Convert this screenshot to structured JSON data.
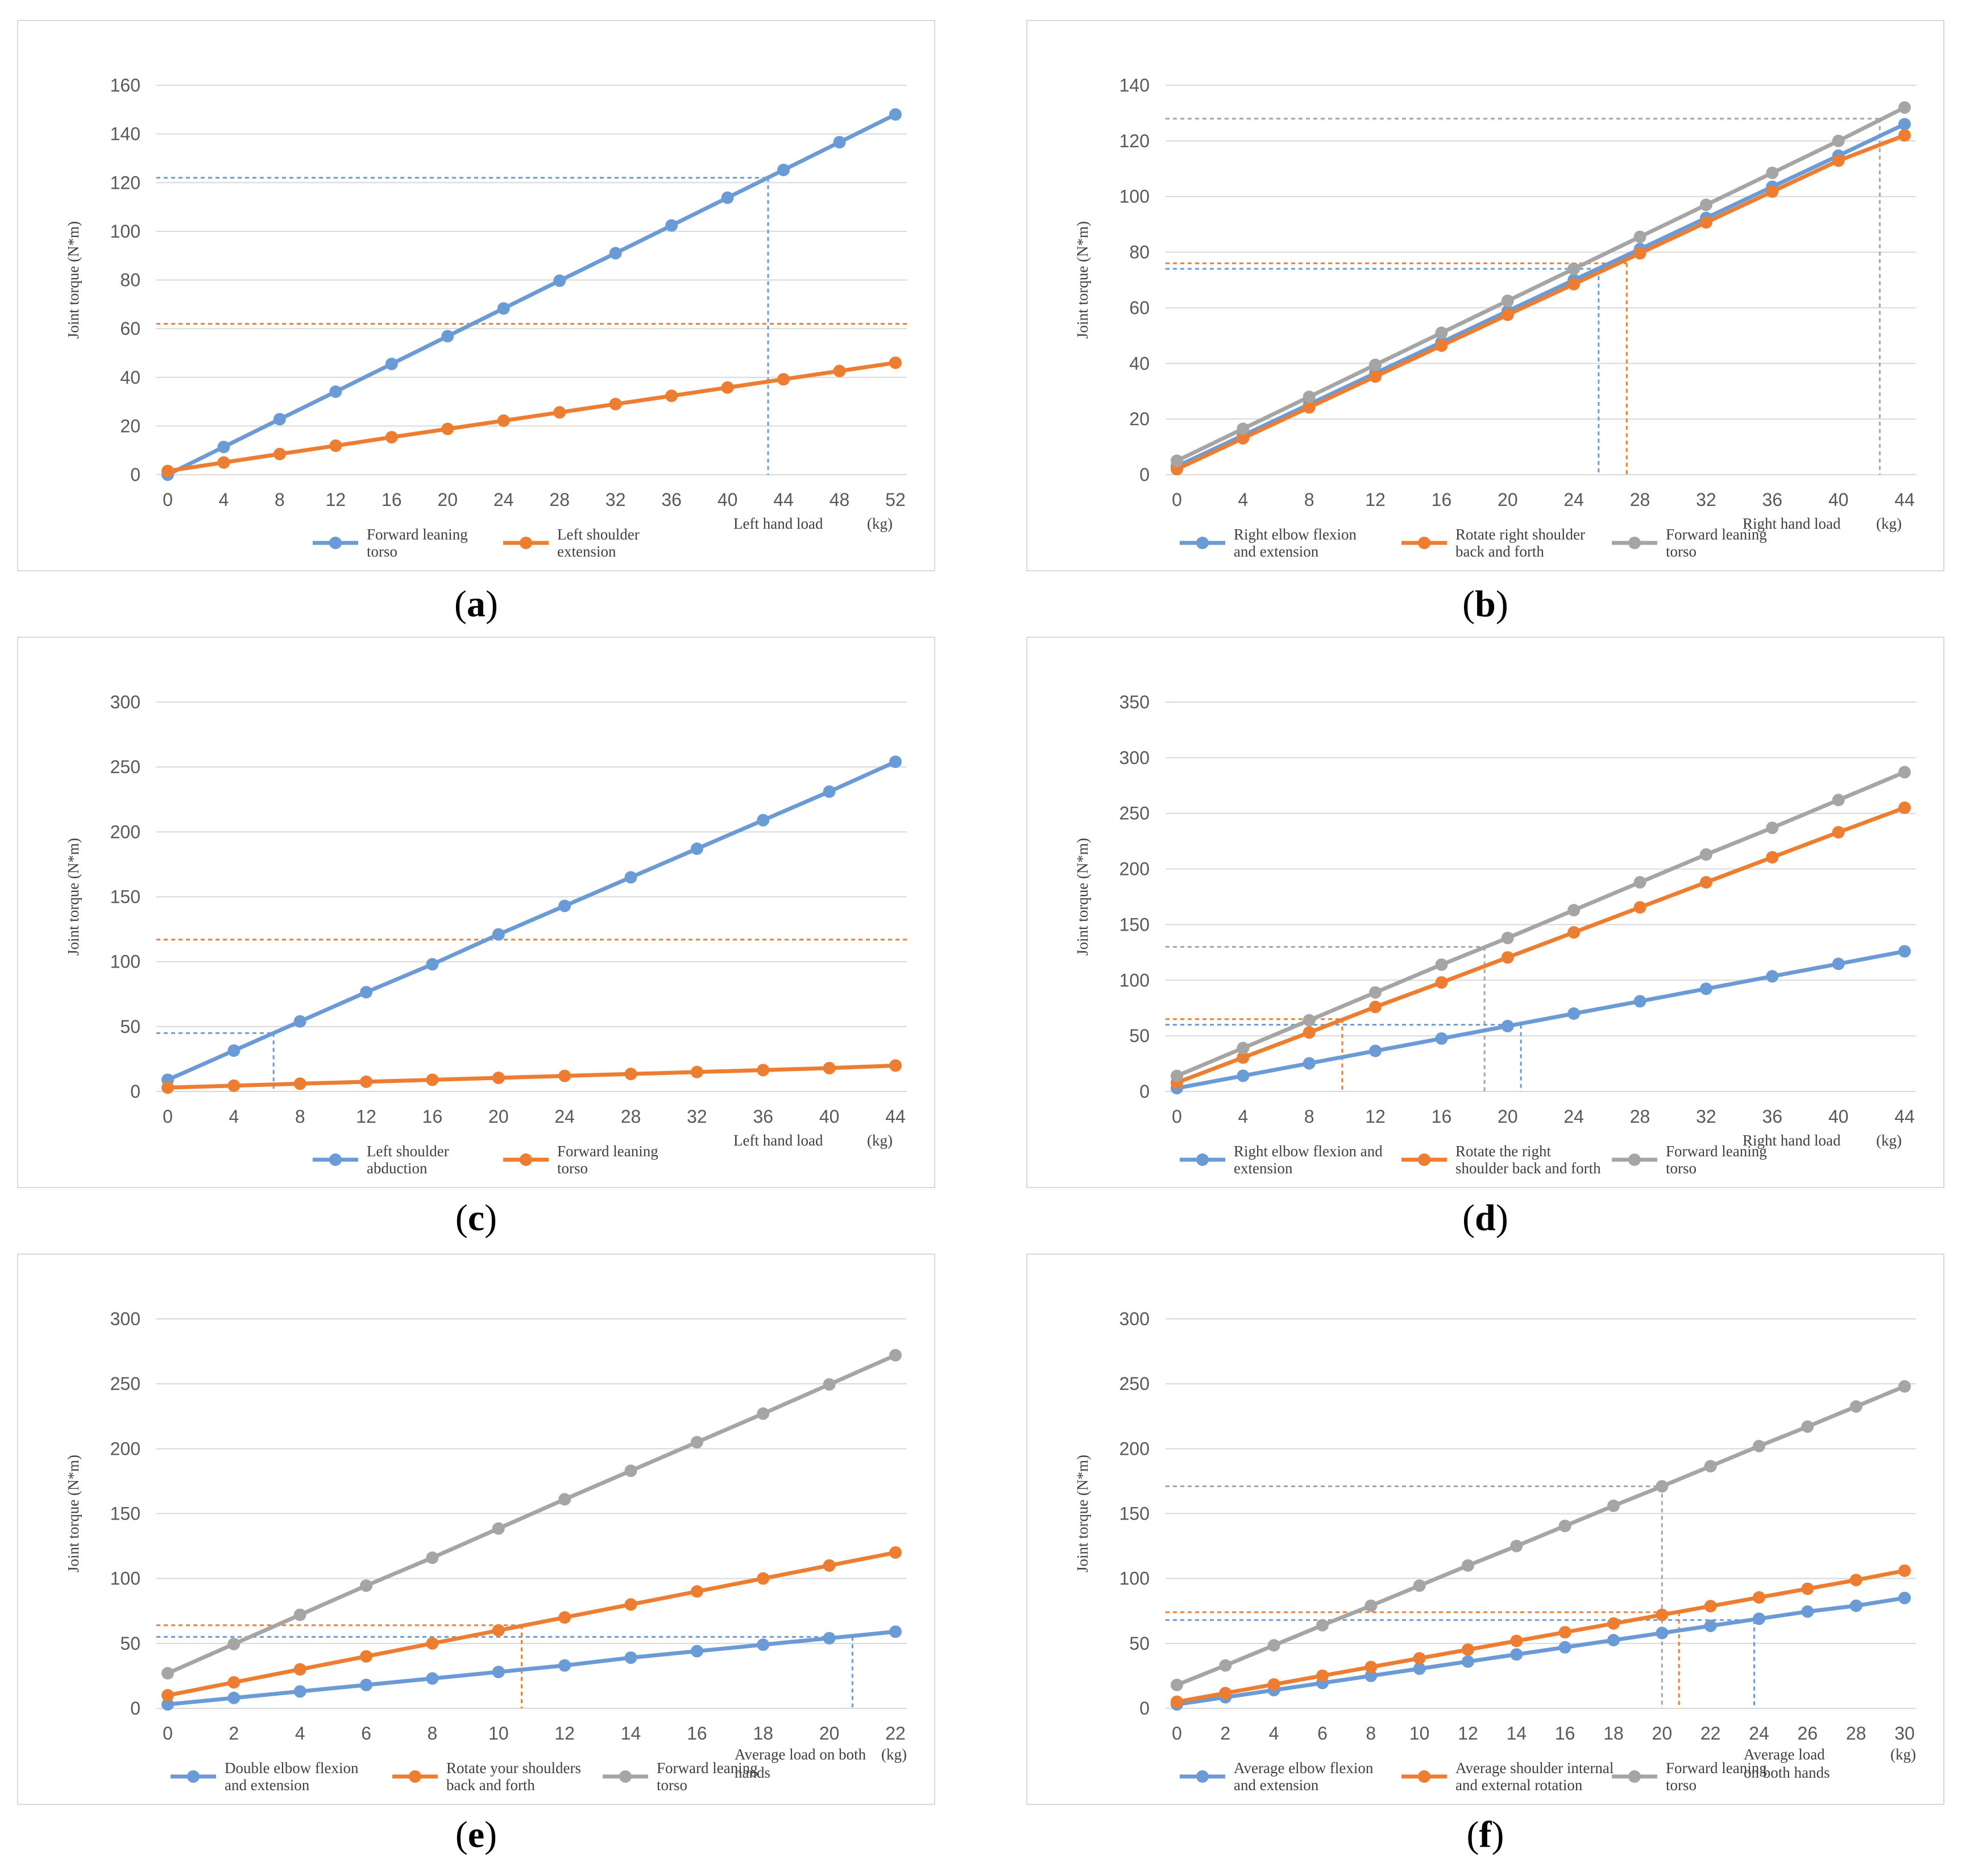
{
  "colors": {
    "blue": "#6a9bd6",
    "orange": "#ed7d31",
    "gray": "#a5a5a5",
    "grid": "#d9d9d9",
    "tick": "#595959"
  },
  "chart_data": [
    {
      "panel": "a",
      "type": "line",
      "ylabel": "Joint torque (N*m)",
      "xlabel": [
        "Left hand load",
        "(kg)"
      ],
      "x": [
        0,
        4,
        8,
        12,
        16,
        20,
        24,
        28,
        32,
        36,
        40,
        44,
        48,
        52
      ],
      "ylim": [
        0,
        160
      ],
      "yticks": [
        0,
        20,
        40,
        60,
        80,
        100,
        120,
        140,
        160
      ],
      "series": [
        {
          "name": [
            "Forward leaning",
            "torso"
          ],
          "color": "blue",
          "values": [
            0,
            11.4,
            22.8,
            34.1,
            45.5,
            56.9,
            68.3,
            79.7,
            91,
            102.4,
            113.8,
            125.2,
            136.6,
            148
          ]
        },
        {
          "name": [
            "Left shoulder",
            "extension"
          ],
          "color": "orange",
          "values": [
            1.5,
            5,
            8.5,
            11.9,
            15.4,
            18.8,
            22.2,
            25.6,
            29,
            32.4,
            35.8,
            39.2,
            42.6,
            46
          ]
        }
      ],
      "refs": [
        {
          "color": "blue",
          "y": 122,
          "x": 42.9
        },
        {
          "color": "orange",
          "y": 62
        }
      ]
    },
    {
      "panel": "b",
      "type": "line",
      "ylabel": "Joint torque (N*m)",
      "xlabel": [
        "Right hand load",
        "(kg)"
      ],
      "x": [
        0,
        4,
        8,
        12,
        16,
        20,
        24,
        28,
        32,
        36,
        40,
        44
      ],
      "ylim": [
        0,
        140
      ],
      "yticks": [
        0,
        20,
        40,
        60,
        80,
        100,
        120,
        140
      ],
      "series": [
        {
          "name": [
            "Right elbow flexion",
            "and extension"
          ],
          "color": "blue",
          "values": [
            3,
            14.1,
            25.3,
            36.5,
            47.6,
            58.8,
            70,
            81.1,
            92.3,
            103.5,
            114.7,
            126
          ]
        },
        {
          "name": [
            "Rotate right shoulder",
            "back and forth"
          ],
          "color": "orange",
          "values": [
            2,
            13.1,
            24.2,
            35.3,
            46.4,
            57.5,
            68.5,
            79.6,
            90.7,
            101.8,
            112.9,
            122
          ]
        },
        {
          "name": [
            "Forward leaning",
            "torso"
          ],
          "color": "gray",
          "values": [
            5,
            16.5,
            28,
            39.5,
            51,
            62.5,
            74,
            85.5,
            97,
            108.5,
            120,
            132
          ]
        }
      ],
      "refs": [
        {
          "color": "blue",
          "y": 74,
          "x": 25.5
        },
        {
          "color": "orange",
          "y": 76,
          "x": 27.2
        },
        {
          "color": "gray",
          "y": 128,
          "x": 42.5
        }
      ]
    },
    {
      "panel": "c",
      "type": "line",
      "ylabel": "Joint torque (N*m)",
      "xlabel": [
        "Left hand load",
        "(kg)"
      ],
      "x": [
        0,
        4,
        8,
        12,
        16,
        20,
        24,
        28,
        32,
        36,
        40,
        44
      ],
      "ylim": [
        0,
        300
      ],
      "yticks": [
        0,
        50,
        100,
        150,
        200,
        250,
        300
      ],
      "series": [
        {
          "name": [
            "Left shoulder",
            "abduction"
          ],
          "color": "blue",
          "values": [
            9,
            31.5,
            54,
            76.5,
            98,
            121,
            143,
            165,
            187,
            209,
            231,
            254
          ]
        },
        {
          "name": [
            "Forward leaning",
            "torso"
          ],
          "color": "orange",
          "values": [
            3,
            4.5,
            6,
            7.5,
            9,
            10.5,
            12,
            13.5,
            15,
            16.5,
            18,
            20
          ]
        }
      ],
      "refs": [
        {
          "color": "blue",
          "y": 45,
          "x": 6.4
        },
        {
          "color": "orange",
          "y": 117
        }
      ]
    },
    {
      "panel": "d",
      "type": "line",
      "ylabel": "Joint torque (N*m)",
      "xlabel": [
        "Right hand load",
        "(kg)"
      ],
      "x": [
        0,
        4,
        8,
        12,
        16,
        20,
        24,
        28,
        32,
        36,
        40,
        44
      ],
      "ylim": [
        0,
        350
      ],
      "yticks": [
        0,
        50,
        100,
        150,
        200,
        250,
        300,
        350
      ],
      "series": [
        {
          "name": [
            "Right elbow flexion and",
            "extension"
          ],
          "color": "blue",
          "values": [
            3,
            14.1,
            25.3,
            36.5,
            47.6,
            58.8,
            70,
            81.1,
            92.3,
            103.5,
            114.7,
            126
          ]
        },
        {
          "name": [
            "Rotate the right",
            "shoulder back and forth"
          ],
          "color": "orange",
          "values": [
            8,
            30.5,
            53,
            76,
            98,
            120.5,
            143,
            165.5,
            188,
            210.5,
            233,
            255
          ]
        },
        {
          "name": [
            "Forward leaning",
            "torso"
          ],
          "color": "gray",
          "values": [
            14,
            39,
            64,
            89,
            114,
            138,
            163,
            188,
            213,
            237,
            262,
            287
          ]
        }
      ],
      "refs": [
        {
          "color": "blue",
          "y": 60,
          "x": 20.8
        },
        {
          "color": "orange",
          "y": 65,
          "x": 10
        },
        {
          "color": "gray",
          "y": 130,
          "x": 18.6
        }
      ]
    },
    {
      "panel": "e",
      "type": "line",
      "ylabel": "Joint torque (N*m)",
      "xlabel": [
        "Average load on both",
        "hands",
        "(kg)"
      ],
      "x": [
        0,
        2,
        4,
        6,
        8,
        10,
        12,
        14,
        16,
        18,
        20,
        22
      ],
      "ylim": [
        0,
        300
      ],
      "yticks": [
        0,
        50,
        100,
        150,
        200,
        250,
        300
      ],
      "series": [
        {
          "name": [
            "Double elbow flexion",
            "and extension"
          ],
          "color": "blue",
          "values": [
            3,
            8,
            13,
            18,
            23,
            28,
            33,
            39,
            44,
            49,
            54,
            59
          ]
        },
        {
          "name": [
            "Rotate your shoulders",
            "back and forth"
          ],
          "color": "orange",
          "values": [
            10,
            20,
            30,
            40,
            50,
            60,
            70,
            80,
            90,
            100,
            110,
            120
          ]
        },
        {
          "name": [
            "Forward leaning",
            "torso"
          ],
          "color": "gray",
          "values": [
            27,
            49.5,
            72,
            94.5,
            116,
            138.5,
            161,
            183,
            205,
            227,
            249.5,
            272
          ]
        }
      ],
      "refs": [
        {
          "color": "blue",
          "y": 55,
          "x": 20.7
        },
        {
          "color": "orange",
          "y": 64,
          "x": 10.7
        }
      ]
    },
    {
      "panel": "f",
      "type": "line",
      "ylabel": "Joint torque (N*m)",
      "xlabel": [
        "Average load",
        "on both hands",
        "(kg)"
      ],
      "x": [
        0,
        2,
        4,
        6,
        8,
        10,
        12,
        14,
        16,
        18,
        20,
        22,
        24,
        26,
        28,
        30
      ],
      "ylim": [
        0,
        300
      ],
      "yticks": [
        0,
        50,
        100,
        150,
        200,
        250,
        300
      ],
      "series": [
        {
          "name": [
            "Average elbow flexion",
            "and extension"
          ],
          "color": "blue",
          "values": [
            3,
            8.5,
            14,
            19.5,
            25,
            30.5,
            36,
            41.5,
            47,
            52.5,
            58,
            63.5,
            69,
            74.5,
            79,
            85
          ]
        },
        {
          "name": [
            "Average shoulder internal",
            "and external rotation"
          ],
          "color": "orange",
          "values": [
            5,
            11.7,
            18.4,
            25.1,
            31.8,
            38.5,
            45.2,
            51.9,
            58.6,
            65.3,
            72,
            78.7,
            85.4,
            92.1,
            98.8,
            106
          ]
        },
        {
          "name": [
            "Forward leaning",
            "torso"
          ],
          "color": "gray",
          "values": [
            18,
            33,
            48.5,
            64,
            79,
            94.5,
            110,
            125,
            140.5,
            156,
            171,
            186.5,
            202,
            217,
            232.5,
            248
          ]
        }
      ],
      "refs": [
        {
          "color": "blue",
          "y": 68,
          "x": 23.8
        },
        {
          "color": "orange",
          "y": 74,
          "x": 20.7
        },
        {
          "color": "gray",
          "y": 171,
          "x": 20
        }
      ]
    }
  ],
  "panel_labels": [
    "(a)",
    "(b)",
    "(c)",
    "(d)",
    "(e)",
    "(f)"
  ]
}
